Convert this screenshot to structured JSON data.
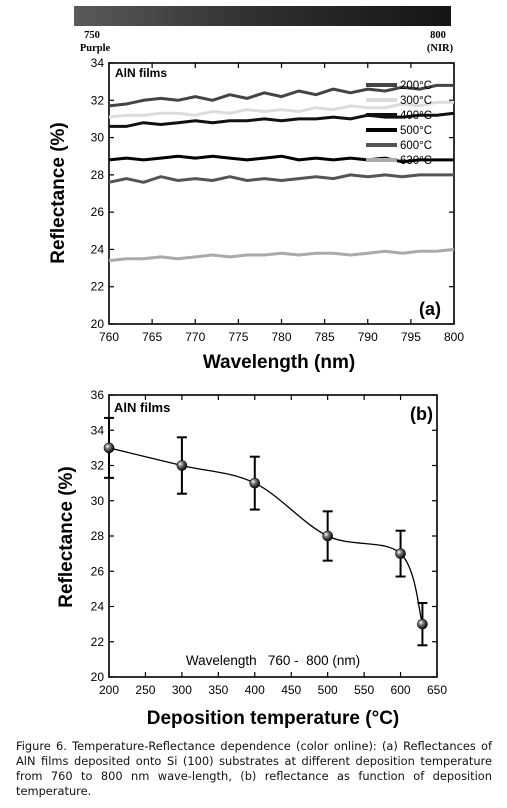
{
  "spectrum_bar": {
    "left_label_value": "750",
    "left_label_name": "Purple",
    "right_label_value": "800",
    "right_label_name": "(NIR)"
  },
  "caption": "Figure 6. Temperature-Reflectance dependence (color online): (a) Reflectances of AlN films deposited onto Si (100) substrates at different deposition temperature from 760 to 800 nm wave-length, (b) reflectance as function of deposition temperature.",
  "chart_data": [
    {
      "type": "line",
      "panel_label": "(a)",
      "annotation": "AlN films",
      "xlabel": "Wavelength (nm)",
      "ylabel": "Reflectance (%)",
      "xlim": [
        760,
        800
      ],
      "ylim": [
        20,
        34
      ],
      "xticks": [
        760,
        765,
        770,
        775,
        780,
        785,
        790,
        795,
        800
      ],
      "yticks": [
        20,
        22,
        24,
        26,
        28,
        30,
        32,
        34
      ],
      "legend_position": "top-right",
      "x": [
        760,
        762,
        764,
        766,
        768,
        770,
        772,
        774,
        776,
        778,
        780,
        782,
        784,
        786,
        788,
        790,
        792,
        794,
        796,
        798,
        800
      ],
      "series": [
        {
          "name": "200°C",
          "color": "#444444",
          "values": [
            31.7,
            31.8,
            32.0,
            32.1,
            32.0,
            32.2,
            32.0,
            32.3,
            32.1,
            32.4,
            32.2,
            32.5,
            32.3,
            32.6,
            32.4,
            32.6,
            32.5,
            32.7,
            32.6,
            32.8,
            32.8
          ]
        },
        {
          "name": "300°C",
          "color": "#dcdcdc",
          "values": [
            31.1,
            31.2,
            31.2,
            31.3,
            31.3,
            31.2,
            31.4,
            31.3,
            31.5,
            31.4,
            31.5,
            31.4,
            31.6,
            31.5,
            31.7,
            31.6,
            31.6,
            31.8,
            31.7,
            31.9,
            31.9
          ]
        },
        {
          "name": "400°C",
          "color": "#111111",
          "values": [
            30.6,
            30.6,
            30.8,
            30.7,
            30.8,
            30.9,
            30.8,
            30.9,
            30.9,
            31.0,
            30.9,
            31.0,
            31.0,
            31.1,
            31.0,
            31.2,
            31.1,
            31.1,
            31.2,
            31.2,
            31.3
          ]
        },
        {
          "name": "500°C",
          "color": "#000000",
          "values": [
            28.8,
            28.9,
            28.8,
            28.9,
            29.0,
            28.9,
            29.0,
            28.9,
            28.8,
            28.9,
            29.0,
            28.8,
            28.9,
            28.8,
            28.9,
            28.8,
            28.9,
            28.7,
            28.8,
            28.8,
            28.8
          ]
        },
        {
          "name": "600°C",
          "color": "#555555",
          "values": [
            27.6,
            27.8,
            27.6,
            27.9,
            27.7,
            27.8,
            27.7,
            27.9,
            27.7,
            27.8,
            27.7,
            27.8,
            27.9,
            27.8,
            28.0,
            27.9,
            28.0,
            27.9,
            28.0,
            28.0,
            28.0
          ]
        },
        {
          "name": "630°C",
          "color": "#aaaaaa",
          "values": [
            23.4,
            23.5,
            23.5,
            23.6,
            23.5,
            23.6,
            23.7,
            23.6,
            23.7,
            23.7,
            23.8,
            23.7,
            23.8,
            23.8,
            23.7,
            23.8,
            23.9,
            23.8,
            23.9,
            23.9,
            24.0
          ]
        }
      ]
    },
    {
      "type": "scatter",
      "panel_label": "(b)",
      "annotation": "AlN films",
      "inner_note": "Wavelength   760 -  800 (nm)",
      "xlabel": "Deposition temperature (°C)",
      "ylabel": "Reflectance (%)",
      "xlim": [
        200,
        650
      ],
      "ylim": [
        20,
        36
      ],
      "xticks": [
        200,
        250,
        300,
        350,
        400,
        450,
        500,
        550,
        600,
        650
      ],
      "yticks": [
        20,
        22,
        24,
        26,
        28,
        30,
        32,
        34,
        36
      ],
      "x": [
        200,
        300,
        400,
        500,
        600,
        630
      ],
      "y": [
        33.0,
        32.0,
        31.0,
        28.0,
        27.0,
        23.0
      ],
      "error": [
        1.7,
        1.6,
        1.5,
        1.4,
        1.3,
        1.2
      ],
      "fit_curve": true
    }
  ]
}
